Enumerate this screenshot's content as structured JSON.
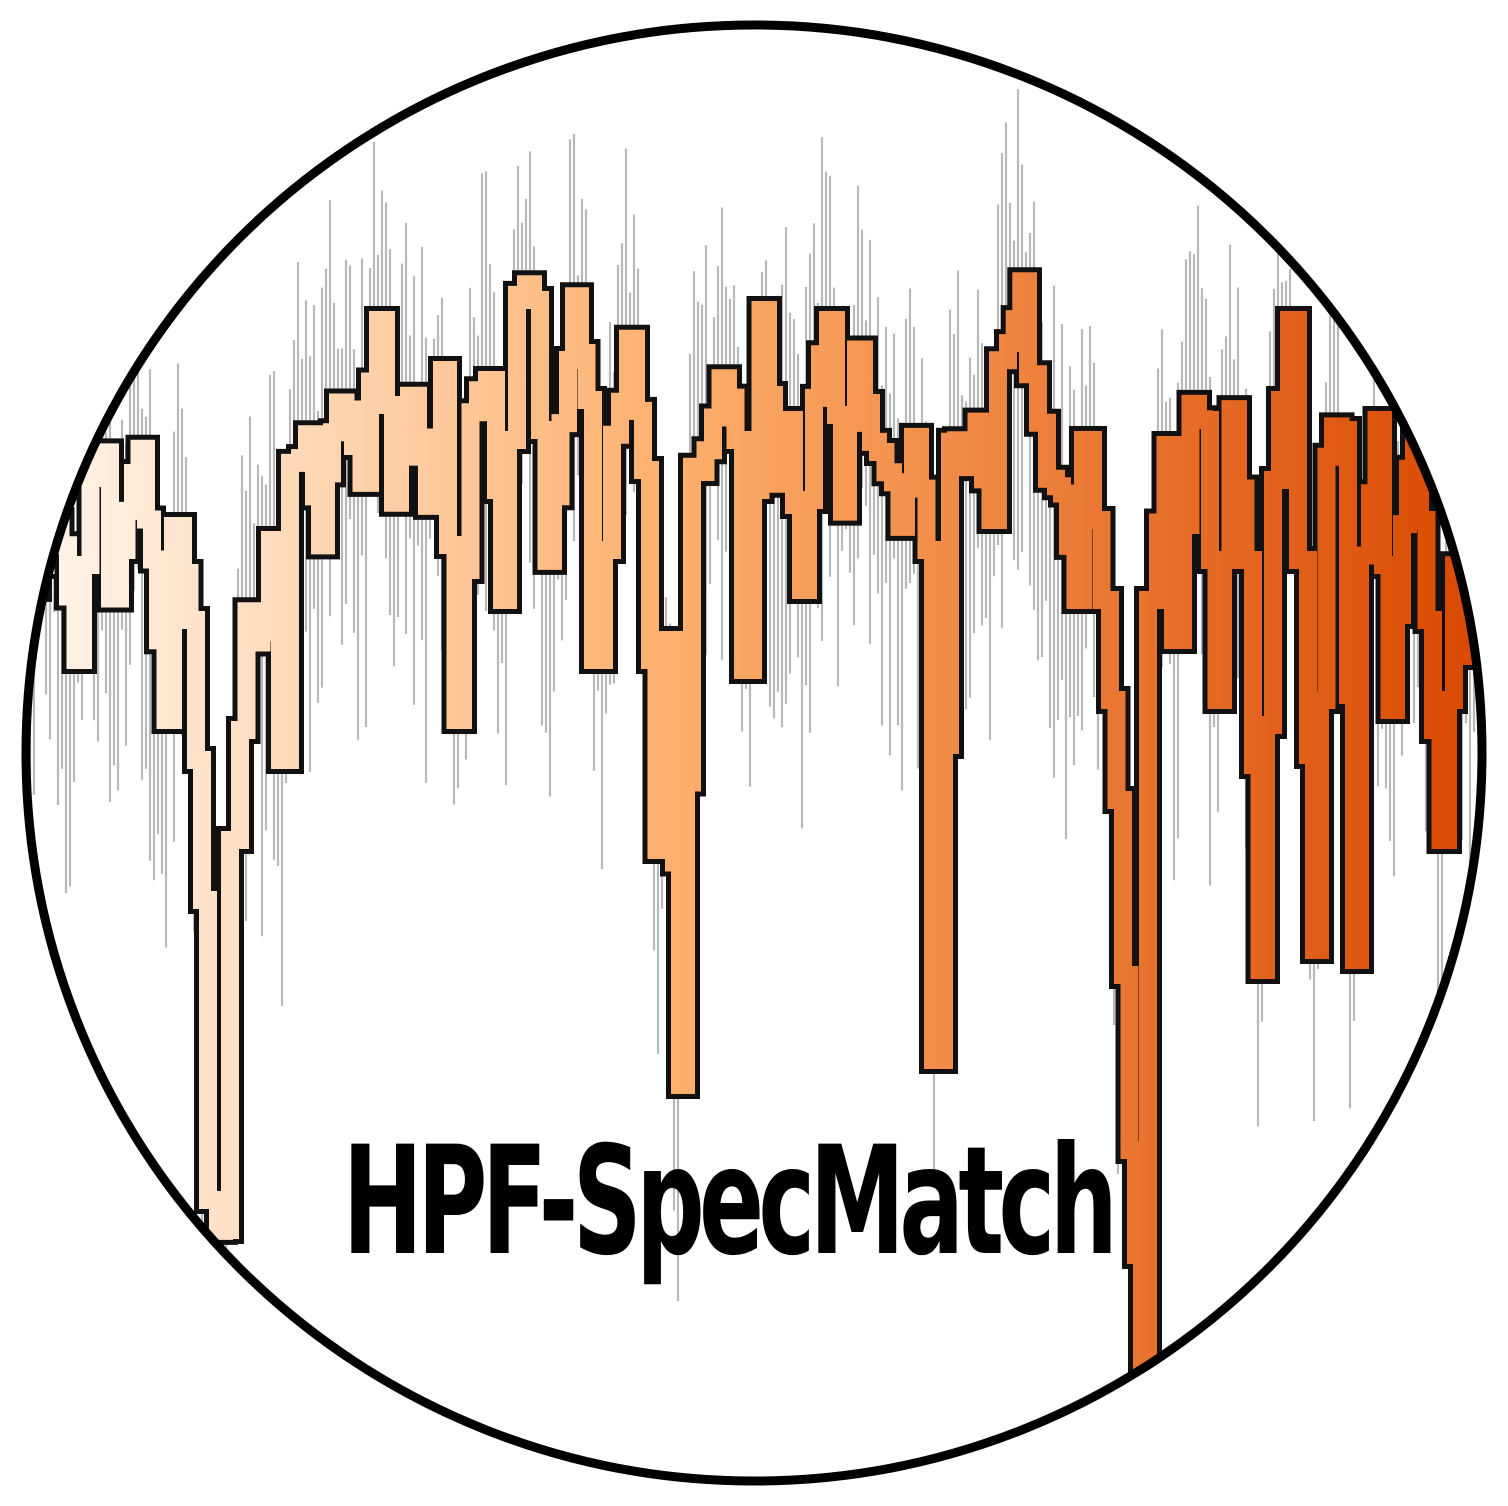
{
  "logo": {
    "name": "HPF-SpecMatch",
    "colors": {
      "ring": "#000000",
      "background": "#ffffff",
      "noise": "#b8b8b8",
      "gradient_start": "#fff6ec",
      "gradient_mid": "#fdae6b",
      "gradient_end": "#d94801"
    }
  }
}
